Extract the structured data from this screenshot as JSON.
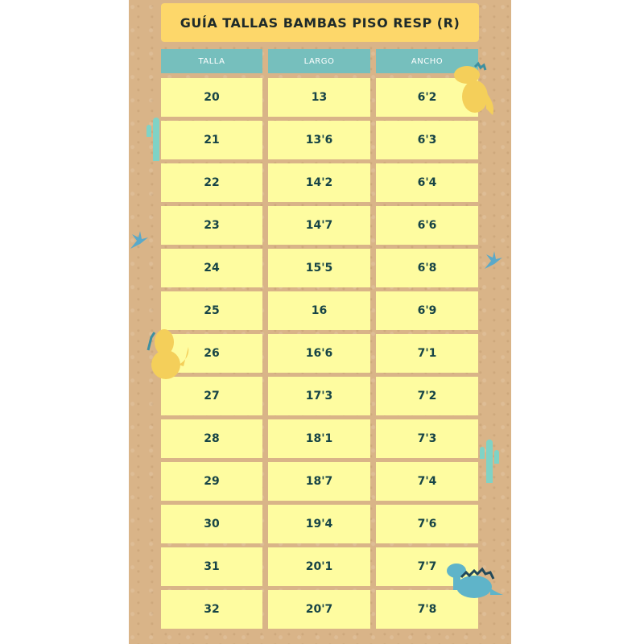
{
  "title": "GUÍA TALLAS BAMBAS PISO RESP (R)",
  "headers": [
    "TALLA",
    "LARGO",
    "ANCHO"
  ],
  "rows": [
    [
      "20",
      "13",
      "6'2"
    ],
    [
      "21",
      "13'6",
      "6'3"
    ],
    [
      "22",
      "14'2",
      "6'4"
    ],
    [
      "23",
      "14'7",
      "6'6"
    ],
    [
      "24",
      "15'5",
      "6'8"
    ],
    [
      "25",
      "16",
      "6'9"
    ],
    [
      "26",
      "16'6",
      "7'1"
    ],
    [
      "27",
      "17'3",
      "7'2"
    ],
    [
      "28",
      "18'1",
      "7'3"
    ],
    [
      "29",
      "18'7",
      "7'4"
    ],
    [
      "30",
      "19'4",
      "7'6"
    ],
    [
      "31",
      "20'1",
      "7'7"
    ],
    [
      "32",
      "20'7",
      "7'8"
    ]
  ],
  "colors": {
    "background": "#d9b488",
    "title": "#fdd76a",
    "header": "#76bfbd",
    "cell": "#fefca0",
    "text": "#174446"
  },
  "decorations": [
    "yellow-dinosaur-icon",
    "teal-dinosaur-icon",
    "cactus-icon"
  ]
}
